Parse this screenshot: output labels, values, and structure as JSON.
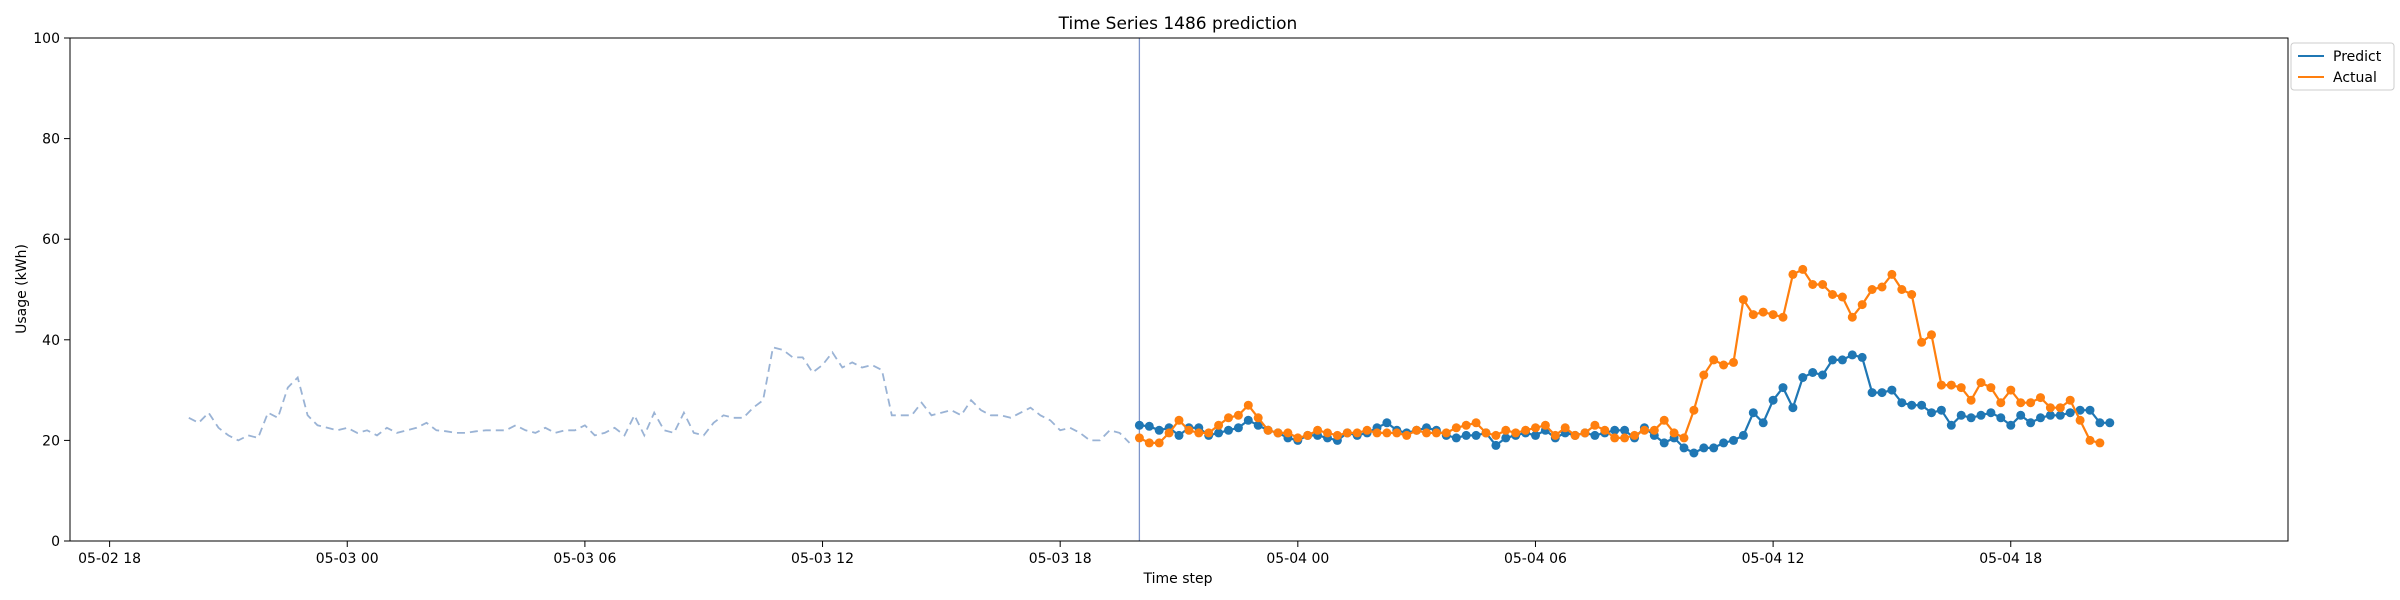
{
  "chart_data": {
    "type": "line",
    "title": "Time Series 1486 prediction",
    "xlabel": "Time step",
    "ylabel": "Usage (kWh)",
    "ylim": [
      0,
      100
    ],
    "yticks": [
      0,
      20,
      40,
      60,
      80,
      100
    ],
    "xlim": [
      "2025-05-02T17:00",
      "2025-05-05T01:00"
    ],
    "xticks": [
      {
        "t": "2025-05-02T18:00",
        "label": "05-02 18"
      },
      {
        "t": "2025-05-03T00:00",
        "label": "05-03 00"
      },
      {
        "t": "2025-05-03T06:00",
        "label": "05-03 06"
      },
      {
        "t": "2025-05-03T12:00",
        "label": "05-03 12"
      },
      {
        "t": "2025-05-03T18:00",
        "label": "05-03 18"
      },
      {
        "t": "2025-05-04T00:00",
        "label": "05-04 00"
      },
      {
        "t": "2025-05-04T06:00",
        "label": "05-04 06"
      },
      {
        "t": "2025-05-04T12:00",
        "label": "05-04 12"
      },
      {
        "t": "2025-05-04T18:00",
        "label": "05-04 18"
      }
    ],
    "grid": false,
    "legend_position": "top-right",
    "forecast_start": "2025-05-03T20:00",
    "step_minutes": 15,
    "history": {
      "start": "2025-05-02T20:00",
      "color": "#9ab3d5",
      "style": "dashed",
      "values": [
        24.5,
        23.5,
        25.5,
        22.5,
        21.0,
        20.0,
        21.0,
        20.5,
        25.5,
        24.5,
        30.5,
        32.5,
        25.0,
        23.0,
        22.5,
        22.0,
        22.5,
        21.5,
        22.0,
        21.0,
        22.5,
        21.5,
        22.0,
        22.5,
        23.5,
        22.0,
        21.8,
        21.5,
        21.5,
        21.8,
        22.0,
        22.0,
        22.0,
        23.0,
        22.0,
        21.5,
        22.5,
        21.5,
        22.0,
        22.0,
        23.0,
        21.0,
        21.5,
        22.5,
        21.0,
        25.0,
        21.0,
        25.5,
        22.0,
        21.5,
        25.5,
        21.5,
        21.0,
        23.5,
        25.0,
        24.5,
        24.5,
        26.5,
        28.0,
        38.5,
        38.0,
        36.5,
        36.5,
        33.5,
        35.0,
        37.5,
        34.5,
        35.5,
        34.5,
        35.0,
        34.0,
        25.0,
        25.0,
        25.0,
        27.5,
        25.0,
        25.5,
        26.0,
        25.0,
        28.0,
        26.0,
        25.0,
        25.0,
        24.5,
        25.5,
        26.5,
        25.0,
        24.0,
        22.0,
        22.5,
        21.5,
        20.0,
        20.0,
        22.0,
        21.5,
        19.5
      ]
    },
    "series": [
      {
        "name": "Predict",
        "color": "#1f77b4",
        "start": "2025-05-03T20:00",
        "values": [
          23.0,
          22.8,
          22.0,
          22.5,
          21.0,
          22.5,
          22.5,
          21.0,
          21.5,
          22.0,
          22.5,
          24.0,
          23.0,
          22.0,
          21.5,
          20.5,
          20.0,
          21.0,
          21.0,
          20.5,
          20.0,
          21.5,
          21.0,
          21.5,
          22.5,
          23.5,
          22.0,
          21.5,
          22.0,
          22.5,
          22.0,
          21.0,
          20.5,
          21.0,
          21.0,
          21.5,
          19.0,
          20.5,
          21.0,
          21.5,
          21.0,
          22.0,
          20.5,
          21.5,
          21.0,
          21.5,
          21.0,
          21.5,
          22.0,
          22.0,
          20.5,
          22.5,
          21.0,
          19.5,
          20.5,
          18.5,
          17.5,
          18.5,
          18.5,
          19.5,
          20.0,
          21.0,
          25.5,
          23.5,
          28.0,
          30.5,
          26.5,
          32.5,
          33.5,
          33.0,
          36.0,
          36.0,
          37.0,
          36.5,
          29.5,
          29.5,
          30.0,
          27.5,
          27.0,
          27.0,
          25.5,
          26.0,
          23.0,
          25.0,
          24.5,
          25.0,
          25.5,
          24.5,
          23.0,
          25.0,
          23.5,
          24.5,
          25.0,
          25.0,
          25.5,
          26.0,
          26.0,
          23.5,
          23.5
        ]
      },
      {
        "name": "Actual",
        "color": "#ff7f0e",
        "start": "2025-05-03T20:00",
        "values": [
          20.5,
          19.5,
          19.5,
          21.5,
          24.0,
          22.0,
          21.5,
          21.5,
          23.0,
          24.5,
          25.0,
          27.0,
          24.5,
          22.0,
          21.5,
          21.5,
          20.5,
          21.0,
          22.0,
          21.5,
          21.0,
          21.5,
          21.5,
          22.0,
          21.5,
          21.5,
          21.5,
          21.0,
          22.0,
          21.5,
          21.5,
          21.5,
          22.5,
          23.0,
          23.5,
          21.5,
          21.0,
          22.0,
          21.5,
          22.0,
          22.5,
          23.0,
          21.0,
          22.5,
          21.0,
          21.5,
          23.0,
          22.0,
          20.5,
          20.5,
          21.0,
          22.0,
          22.0,
          24.0,
          21.5,
          20.5,
          26.0,
          33.0,
          36.0,
          35.0,
          35.5,
          48.0,
          45.0,
          45.5,
          45.0,
          44.5,
          53.0,
          54.0,
          51.0,
          51.0,
          49.0,
          48.5,
          44.5,
          47.0,
          50.0,
          50.5,
          53.0,
          50.0,
          49.0,
          39.5,
          41.0,
          31.0,
          31.0,
          30.5,
          28.0,
          31.5,
          30.5,
          27.5,
          30.0,
          27.5,
          27.5,
          28.5,
          26.5,
          26.5,
          28.0,
          24.0,
          20.0,
          19.5
        ]
      }
    ]
  }
}
